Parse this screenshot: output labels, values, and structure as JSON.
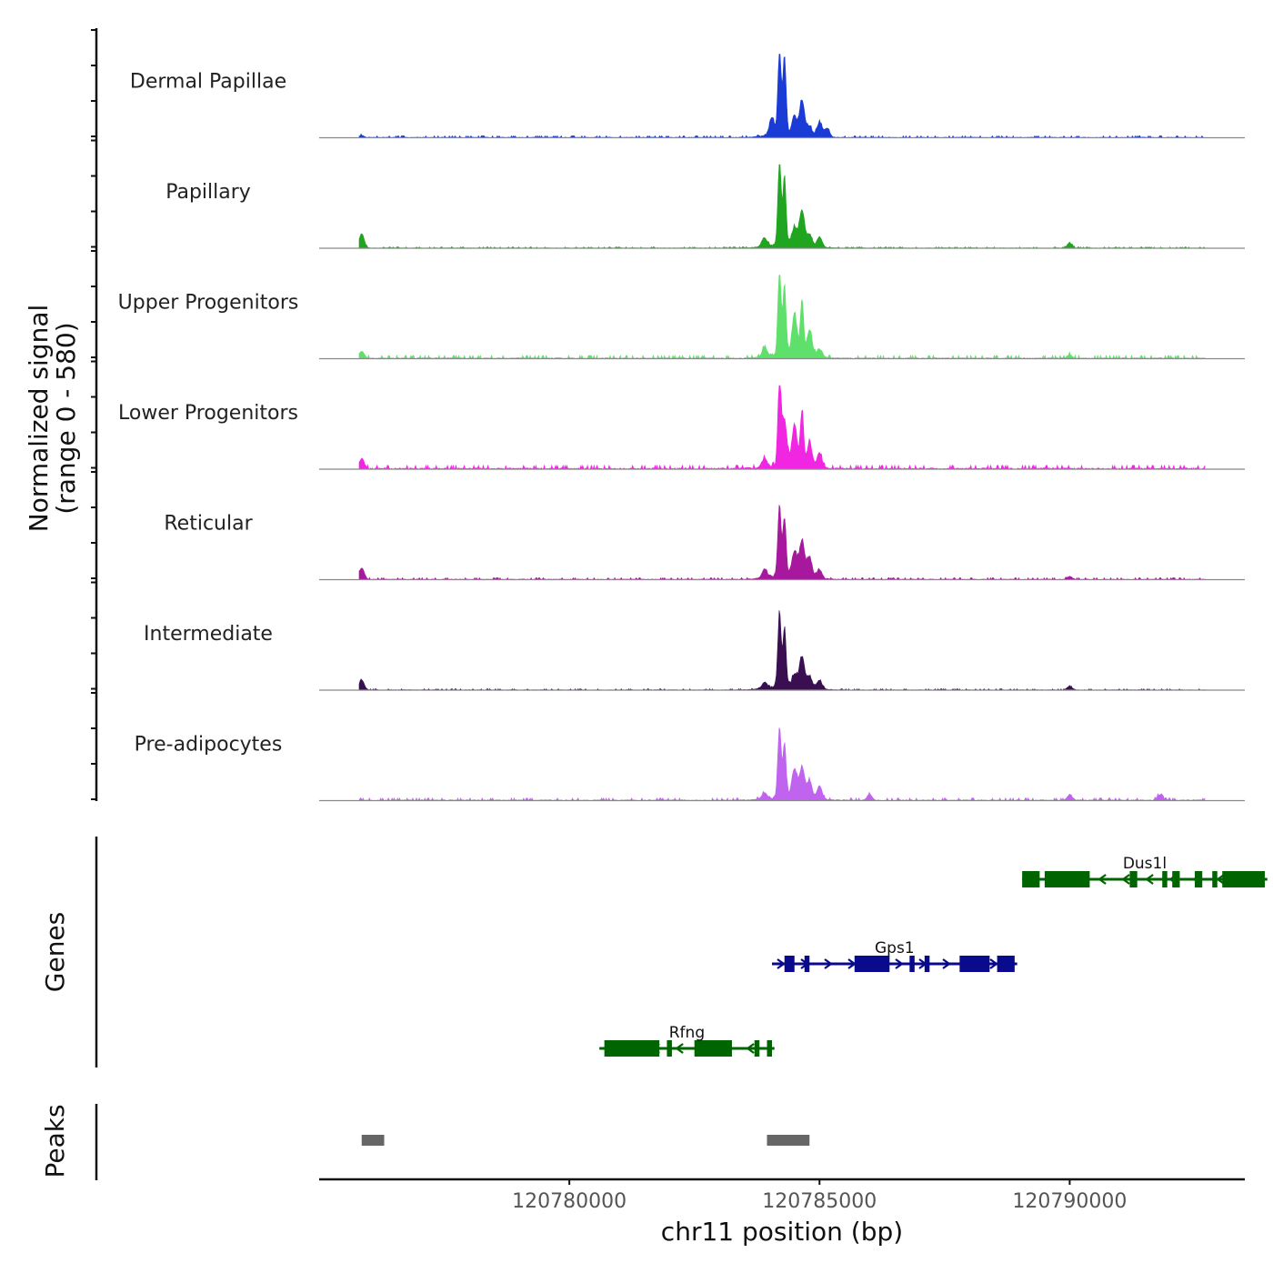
{
  "chart_data": {
    "type": "area",
    "title": "",
    "xlabel": "chr11 position (bp)",
    "ylabel": "Normalized signal",
    "ylabel_range": "(range 0 - 580)",
    "xlim": [
      120775000,
      120793500
    ],
    "xticks": [
      {
        "value": 120780000,
        "label": "120780000"
      },
      {
        "value": 120785000,
        "label": "120785000"
      },
      {
        "value": 120790000,
        "label": "120790000"
      }
    ],
    "ylim": [
      0,
      580
    ],
    "series": [
      {
        "name": "Dermal Papillae",
        "color": "#1a3bd6",
        "baseline": 6,
        "peaks": [
          [
            120775850,
            14
          ],
          [
            120784050,
            120
          ],
          [
            120784200,
            580
          ],
          [
            120784300,
            540
          ],
          [
            120784500,
            110
          ],
          [
            120784650,
            240
          ],
          [
            120784800,
            60
          ],
          [
            120785000,
            100
          ],
          [
            120785150,
            60
          ]
        ]
      },
      {
        "name": "Papillary",
        "color": "#1fa51f",
        "baseline": 4,
        "peaks": [
          [
            120775850,
            100
          ],
          [
            120783900,
            60
          ],
          [
            120784200,
            580
          ],
          [
            120784300,
            470
          ],
          [
            120784500,
            120
          ],
          [
            120784650,
            240
          ],
          [
            120784800,
            80
          ],
          [
            120785000,
            70
          ],
          [
            120790000,
            35
          ]
        ]
      },
      {
        "name": "Upper Progenitors",
        "color": "#5ee06a",
        "baseline": 10,
        "peaks": [
          [
            120775850,
            50
          ],
          [
            120783900,
            60
          ],
          [
            120784200,
            580
          ],
          [
            120784300,
            480
          ],
          [
            120784500,
            280
          ],
          [
            120784650,
            380
          ],
          [
            120784800,
            180
          ],
          [
            120785000,
            60
          ],
          [
            120790000,
            25
          ]
        ]
      },
      {
        "name": "Lower Progenitors",
        "color": "#f026e3",
        "baseline": 12,
        "peaks": [
          [
            120775850,
            70
          ],
          [
            120783900,
            60
          ],
          [
            120784200,
            580
          ],
          [
            120784300,
            300
          ],
          [
            120784500,
            280
          ],
          [
            120784650,
            380
          ],
          [
            120784800,
            160
          ],
          [
            120785000,
            100
          ]
        ]
      },
      {
        "name": "Reticular",
        "color": "#a8189e",
        "baseline": 6,
        "peaks": [
          [
            120775850,
            80
          ],
          [
            120783900,
            60
          ],
          [
            120784200,
            500
          ],
          [
            120784300,
            400
          ],
          [
            120784500,
            170
          ],
          [
            120784650,
            250
          ],
          [
            120784800,
            140
          ],
          [
            120785000,
            60
          ],
          [
            120790000,
            20
          ]
        ]
      },
      {
        "name": "Intermediate",
        "color": "#3a0f52",
        "baseline": 4,
        "peaks": [
          [
            120775850,
            70
          ],
          [
            120783900,
            40
          ],
          [
            120784200,
            520
          ],
          [
            120784300,
            400
          ],
          [
            120784500,
            80
          ],
          [
            120784650,
            210
          ],
          [
            120784800,
            80
          ],
          [
            120785000,
            60
          ],
          [
            120790000,
            25
          ]
        ]
      },
      {
        "name": "Pre-adipocytes",
        "color": "#c064f0",
        "baseline": 8,
        "peaks": [
          [
            120783900,
            40
          ],
          [
            120784200,
            490
          ],
          [
            120784300,
            360
          ],
          [
            120784500,
            190
          ],
          [
            120784650,
            200
          ],
          [
            120784800,
            120
          ],
          [
            120785000,
            90
          ],
          [
            120786000,
            40
          ],
          [
            120790000,
            40
          ],
          [
            120791800,
            40
          ]
        ]
      }
    ],
    "genes": [
      {
        "name": "Dus1l",
        "color": "#006400",
        "strand": "-",
        "row": 1,
        "start": 120789050,
        "end": 120793950,
        "exons": [
          [
            120789050,
            120789400
          ],
          [
            120789500,
            120790400
          ],
          [
            120791200,
            120791350
          ],
          [
            120791850,
            120791950
          ],
          [
            120792050,
            120792200
          ],
          [
            120792500,
            120792650
          ],
          [
            120792850,
            120792950
          ],
          [
            120793050,
            120793900
          ]
        ]
      },
      {
        "name": "Gps1",
        "color": "#0a0a8c",
        "strand": "+",
        "row": 2,
        "start": 120784050,
        "end": 120788950,
        "exons": [
          [
            120784300,
            120784500
          ],
          [
            120784700,
            120784800
          ],
          [
            120785700,
            120786400
          ],
          [
            120786800,
            120786900
          ],
          [
            120787100,
            120787200
          ],
          [
            120787800,
            120788400
          ],
          [
            120788550,
            120788900
          ]
        ]
      },
      {
        "name": "Rfng",
        "color": "#006400",
        "strand": "-",
        "row": 3,
        "start": 120780600,
        "end": 120784100,
        "exons": [
          [
            120780700,
            120781800
          ],
          [
            120781950,
            120782050
          ],
          [
            120782500,
            120783250
          ],
          [
            120783700,
            120783800
          ],
          [
            120783950,
            120784050
          ]
        ]
      }
    ],
    "peaks_track": [
      {
        "start": 120775850,
        "end": 120776300
      },
      {
        "start": 120783950,
        "end": 120784800
      }
    ],
    "track_titles": {
      "genes": "Genes",
      "peaks": "Peaks"
    }
  }
}
